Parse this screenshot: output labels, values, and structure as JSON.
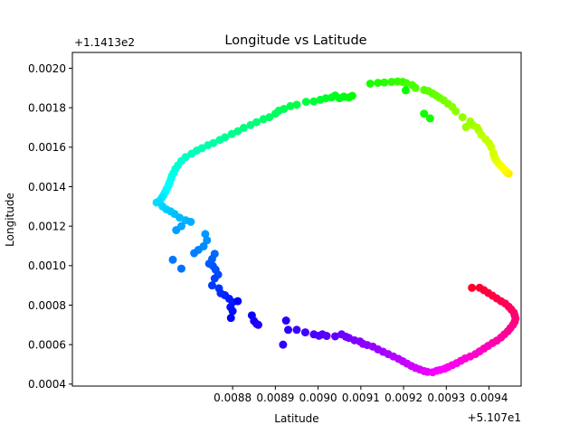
{
  "chart_data": {
    "type": "scatter",
    "title": "Longitude vs Latitude",
    "xlabel": "Latitude",
    "ylabel": "Longitude",
    "x_offset_label": "+5.107e1",
    "y_offset_label": "+1.1413e2",
    "xlim": [
      0.008425,
      0.009475
    ],
    "ylim": [
      0.00039,
      0.00208
    ],
    "x_ticks": [
      0.0088,
      0.0089,
      0.009,
      0.0091,
      0.0092,
      0.0093,
      0.0094
    ],
    "x_tick_labels": [
      "0.0088",
      "0.0089",
      "0.0090",
      "0.0091",
      "0.0092",
      "0.0093",
      "0.0094"
    ],
    "y_ticks": [
      0.0004,
      0.0006,
      0.0008,
      0.001,
      0.0012,
      0.0014,
      0.0016,
      0.0018,
      0.002
    ],
    "y_tick_labels": [
      "0.0004",
      "0.0006",
      "0.0008",
      "0.0010",
      "0.0012",
      "0.0014",
      "0.0016",
      "0.0018",
      "0.0020"
    ],
    "colormap": "hsv",
    "marker_size": 4.5,
    "points": [
      [
        0.009446,
        0.001466
      ],
      [
        0.009442,
        0.001472
      ],
      [
        0.009438,
        0.001482
      ],
      [
        0.009432,
        0.001495
      ],
      [
        0.009428,
        0.001505
      ],
      [
        0.009422,
        0.001518
      ],
      [
        0.009418,
        0.00153
      ],
      [
        0.009414,
        0.001542
      ],
      [
        0.009412,
        0.001555
      ],
      [
        0.00941,
        0.00157
      ],
      [
        0.009405,
        0.0016
      ],
      [
        0.0094,
        0.00162
      ],
      [
        0.009392,
        0.00164
      ],
      [
        0.009382,
        0.001662
      ],
      [
        0.009376,
        0.001685
      ],
      [
        0.009372,
        0.0017
      ],
      [
        0.009362,
        0.001712
      ],
      [
        0.009356,
        0.00173
      ],
      [
        0.009346,
        0.001702
      ],
      [
        0.009338,
        0.001752
      ],
      [
        0.009322,
        0.001782
      ],
      [
        0.009314,
        0.001804
      ],
      [
        0.009304,
        0.00182
      ],
      [
        0.009294,
        0.001838
      ],
      [
        0.009284,
        0.00185
      ],
      [
        0.009276,
        0.001862
      ],
      [
        0.009268,
        0.001872
      ],
      [
        0.009258,
        0.001885
      ],
      [
        0.009248,
        0.00189
      ],
      [
        0.009228,
        0.0019
      ],
      [
        0.00922,
        0.001915
      ],
      [
        0.009206,
        0.001925
      ],
      [
        0.009198,
        0.001931
      ],
      [
        0.009186,
        0.001933
      ],
      [
        0.009172,
        0.001931
      ],
      [
        0.009155,
        0.001928
      ],
      [
        0.00914,
        0.001926
      ],
      [
        0.009122,
        0.001922
      ],
      [
        0.009262,
        0.001746
      ],
      [
        0.009248,
        0.00177
      ],
      [
        0.009205,
        0.001888
      ],
      [
        0.00908,
        0.00186
      ],
      [
        0.009072,
        0.001852
      ],
      [
        0.00906,
        0.001856
      ],
      [
        0.00905,
        0.001848
      ],
      [
        0.00904,
        0.001862
      ],
      [
        0.009032,
        0.001852
      ],
      [
        0.009018,
        0.001848
      ],
      [
        0.009005,
        0.00184
      ],
      [
        0.00899,
        0.001832
      ],
      [
        0.008972,
        0.00183
      ],
      [
        0.00895,
        0.001815
      ],
      [
        0.008935,
        0.001808
      ],
      [
        0.00892,
        0.001794
      ],
      [
        0.008908,
        0.001785
      ],
      [
        0.0089,
        0.00177
      ],
      [
        0.008886,
        0.001752
      ],
      [
        0.008872,
        0.001742
      ],
      [
        0.008856,
        0.001727
      ],
      [
        0.008842,
        0.001712
      ],
      [
        0.008826,
        0.001698
      ],
      [
        0.008812,
        0.001681
      ],
      [
        0.008798,
        0.001667
      ],
      [
        0.008782,
        0.00165
      ],
      [
        0.00877,
        0.001637
      ],
      [
        0.008755,
        0.001621
      ],
      [
        0.008742,
        0.00161
      ],
      [
        0.008728,
        0.001595
      ],
      [
        0.008716,
        0.001583
      ],
      [
        0.008704,
        0.001567
      ],
      [
        0.00869,
        0.00155
      ],
      [
        0.00868,
        0.00153
      ],
      [
        0.008672,
        0.001508
      ],
      [
        0.008666,
        0.00149
      ],
      [
        0.008662,
        0.00147
      ],
      [
        0.008658,
        0.001455
      ],
      [
        0.008656,
        0.00144
      ],
      [
        0.008652,
        0.00142
      ],
      [
        0.00865,
        0.001406
      ],
      [
        0.008646,
        0.00139
      ],
      [
        0.008642,
        0.001372
      ],
      [
        0.008638,
        0.001356
      ],
      [
        0.008634,
        0.001343
      ],
      [
        0.00863,
        0.00133
      ],
      [
        0.008622,
        0.00132
      ],
      [
        0.008636,
        0.0013
      ],
      [
        0.008645,
        0.001285
      ],
      [
        0.008655,
        0.001275
      ],
      [
        0.008664,
        0.001262
      ],
      [
        0.008676,
        0.001243
      ],
      [
        0.00869,
        0.00123
      ],
      [
        0.008702,
        0.001222
      ],
      [
        0.00868,
        0.0012
      ],
      [
        0.008668,
        0.00118
      ],
      [
        0.008736,
        0.00116
      ],
      [
        0.00874,
        0.001128
      ],
      [
        0.008732,
        0.001098
      ],
      [
        0.00872,
        0.00108
      ],
      [
        0.00871,
        0.001063
      ],
      [
        0.00866,
        0.00103
      ],
      [
        0.00868,
        0.000985
      ],
      [
        0.008758,
        0.00106
      ],
      [
        0.008752,
        0.001034
      ],
      [
        0.008745,
        0.00101
      ],
      [
        0.008754,
        0.000998
      ],
      [
        0.00876,
        0.00098
      ],
      [
        0.008766,
        0.000955
      ],
      [
        0.008758,
        0.000935
      ],
      [
        0.008752,
        0.0009
      ],
      [
        0.008768,
        0.000885
      ],
      [
        0.008772,
        0.00086
      ],
      [
        0.008782,
        0.00085
      ],
      [
        0.008792,
        0.000832
      ],
      [
        0.0088,
        0.000815
      ],
      [
        0.008795,
        0.00079
      ],
      [
        0.0088,
        0.00077
      ],
      [
        0.008796,
        0.000735
      ],
      [
        0.008812,
        0.00082
      ],
      [
        0.008845,
        0.000748
      ],
      [
        0.00885,
        0.00072
      ],
      [
        0.008856,
        0.000705
      ],
      [
        0.00886,
        0.0007
      ],
      [
        0.008925,
        0.000722
      ],
      [
        0.00893,
        0.000675
      ],
      [
        0.008918,
        0.0006
      ],
      [
        0.00895,
        0.000675
      ],
      [
        0.00897,
        0.000662
      ],
      [
        0.00899,
        0.000652
      ],
      [
        0.009002,
        0.000645
      ],
      [
        0.00901,
        0.000652
      ],
      [
        0.00902,
        0.000644
      ],
      [
        0.00904,
        0.000642
      ],
      [
        0.009055,
        0.000652
      ],
      [
        0.009065,
        0.00064
      ],
      [
        0.009072,
        0.000634
      ],
      [
        0.009085,
        0.000622
      ],
      [
        0.009098,
        0.000616
      ],
      [
        0.009105,
        0.000604
      ],
      [
        0.009115,
        0.000598
      ],
      [
        0.009128,
        0.00059
      ],
      [
        0.00914,
        0.000576
      ],
      [
        0.009152,
        0.000564
      ],
      [
        0.009164,
        0.000552
      ],
      [
        0.009176,
        0.00054
      ],
      [
        0.009188,
        0.000528
      ],
      [
        0.009198,
        0.000516
      ],
      [
        0.009208,
        0.000504
      ],
      [
        0.009218,
        0.000492
      ],
      [
        0.009228,
        0.000482
      ],
      [
        0.009238,
        0.000474
      ],
      [
        0.009248,
        0.000466
      ],
      [
        0.009256,
        0.000462
      ],
      [
        0.009268,
        0.00046
      ],
      [
        0.009278,
        0.000468
      ],
      [
        0.009286,
        0.000472
      ],
      [
        0.009296,
        0.000478
      ],
      [
        0.009304,
        0.000486
      ],
      [
        0.009314,
        0.000496
      ],
      [
        0.009324,
        0.000506
      ],
      [
        0.009334,
        0.000518
      ],
      [
        0.009344,
        0.00053
      ],
      [
        0.009356,
        0.00054
      ],
      [
        0.009368,
        0.000552
      ],
      [
        0.009378,
        0.000566
      ],
      [
        0.009388,
        0.00058
      ],
      [
        0.009398,
        0.000594
      ],
      [
        0.009408,
        0.000608
      ],
      [
        0.009418,
        0.00062
      ],
      [
        0.009428,
        0.000636
      ],
      [
        0.009436,
        0.000652
      ],
      [
        0.009444,
        0.000668
      ],
      [
        0.00945,
        0.000684
      ],
      [
        0.009456,
        0.0007
      ],
      [
        0.00946,
        0.000716
      ],
      [
        0.009462,
        0.000732
      ],
      [
        0.00946,
        0.000748
      ],
      [
        0.009458,
        0.000762
      ],
      [
        0.009452,
        0.000778
      ],
      [
        0.009446,
        0.000792
      ],
      [
        0.009438,
        0.000808
      ],
      [
        0.009428,
        0.00082
      ],
      [
        0.009418,
        0.000834
      ],
      [
        0.009408,
        0.000848
      ],
      [
        0.009398,
        0.000862
      ],
      [
        0.009388,
        0.000876
      ],
      [
        0.009378,
        0.000888
      ],
      [
        0.00936,
        0.000888
      ]
    ]
  }
}
